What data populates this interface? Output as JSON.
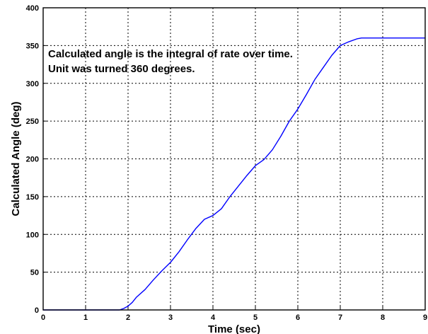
{
  "chart_data": {
    "type": "line",
    "xlabel": "Time (sec)",
    "ylabel": "Calculated Angle (deg)",
    "xlim": [
      0,
      9
    ],
    "ylim": [
      0,
      400
    ],
    "xticks": [
      "0",
      "1",
      "2",
      "3",
      "4",
      "5",
      "6",
      "7",
      "8",
      "9"
    ],
    "yticks": [
      "0",
      "50",
      "100",
      "150",
      "200",
      "250",
      "300",
      "350",
      "400"
    ],
    "grid": true,
    "annotations": [
      "Calculated angle is the integral of rate over time.",
      "Unit was turned 360 degrees."
    ],
    "colors": {
      "line": "#0000ff",
      "grid": "#000000",
      "axes": "#000000"
    },
    "series": [
      {
        "x": [
          0,
          1.8,
          1.9,
          2.0,
          2.1,
          2.2,
          2.4,
          2.6,
          2.8,
          3.0,
          3.2,
          3.4,
          3.6,
          3.8,
          4.0,
          4.2,
          4.4,
          4.6,
          4.8,
          5.0,
          5.2,
          5.4,
          5.6,
          5.8,
          6.0,
          6.2,
          6.4,
          6.6,
          6.8,
          7.0,
          7.2,
          7.4,
          7.5,
          7.6,
          9.0
        ],
        "y": [
          0,
          0,
          2,
          5,
          10,
          17,
          27,
          40,
          52,
          63,
          77,
          93,
          108,
          120,
          125,
          134,
          150,
          164,
          178,
          191,
          199,
          212,
          230,
          250,
          266,
          285,
          305,
          321,
          337,
          350,
          355,
          359,
          360,
          360,
          360
        ]
      }
    ]
  }
}
